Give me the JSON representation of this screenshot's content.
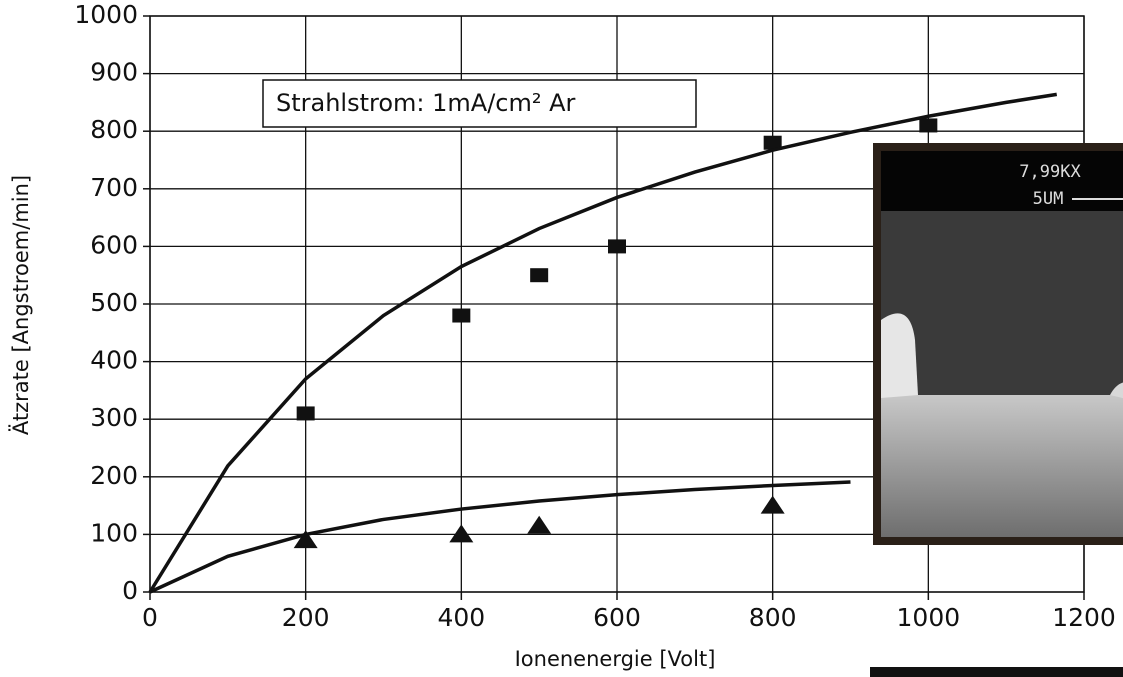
{
  "chart_data": {
    "type": "scatter",
    "x_label": "Ionenenergie [Volt]",
    "y_label": "Ätzrate [Angstroem/min]",
    "annotation": "Strahlstrom: 1mA/cm²  Ar",
    "inset": {
      "magnification": "7,99KX",
      "scale": "5UM"
    },
    "xlim": [
      0,
      1200
    ],
    "xticks": [
      0,
      200,
      400,
      600,
      800,
      1000,
      1200
    ],
    "ylim": [
      0,
      1000
    ],
    "yticks": [
      0,
      100,
      200,
      300,
      400,
      500,
      600,
      700,
      800,
      900,
      1000
    ],
    "grid": true,
    "series": [
      {
        "marker": "square",
        "color": "#111111",
        "x": [
          200,
          400,
          500,
          600,
          800,
          1000
        ],
        "values": [
          310,
          480,
          550,
          600,
          780,
          810
        ]
      },
      {
        "marker": "triangle",
        "color": "#111111",
        "x": [
          200,
          400,
          500,
          800
        ],
        "values": [
          90,
          100,
          115,
          150
        ]
      },
      {
        "marker": "line",
        "color": "#111111",
        "x": [
          0,
          100,
          200,
          300,
          400,
          500,
          600,
          700,
          800,
          900,
          1000,
          1100,
          1165
        ],
        "values": [
          0,
          219,
          370,
          480,
          565,
          631,
          685,
          729,
          767,
          798,
          826,
          850,
          864
        ]
      },
      {
        "marker": "line",
        "color": "#111111",
        "x": [
          0,
          100,
          200,
          300,
          400,
          500,
          600,
          700,
          800,
          900
        ],
        "values": [
          0,
          62,
          100,
          126,
          144,
          158,
          169,
          178,
          185,
          191
        ]
      }
    ]
  }
}
